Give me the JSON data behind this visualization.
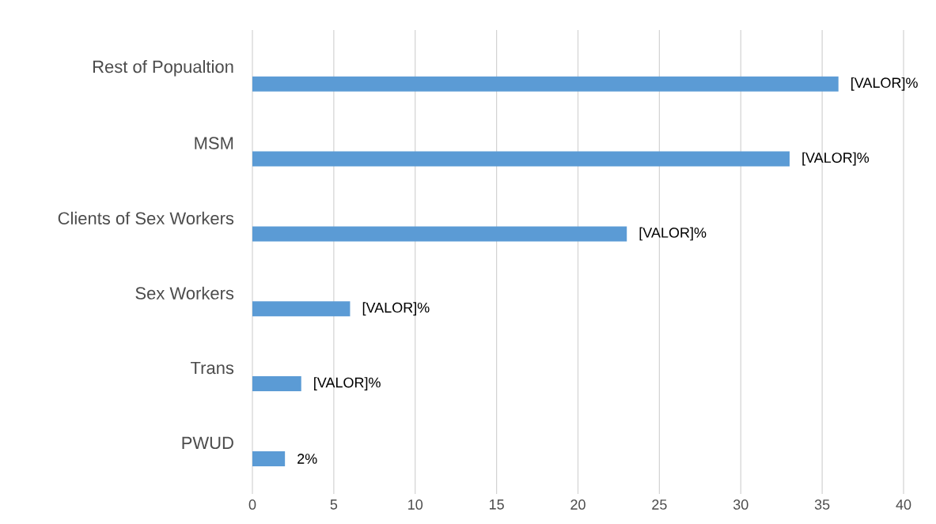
{
  "chart_data": {
    "type": "bar",
    "orientation": "horizontal",
    "categories": [
      "Rest of Popualtion",
      "MSM",
      "Clients of Sex Workers",
      "Sex Workers",
      "Trans",
      "PWUD"
    ],
    "values": [
      36,
      33,
      23,
      6,
      3,
      2
    ],
    "value_labels": [
      "[VALOR]%",
      "[VALOR]%",
      "[VALOR]%",
      "[VALOR]%",
      "[VALOR]%",
      "2%"
    ],
    "color": "#5b9bd5",
    "xlim": [
      0,
      40
    ],
    "xticks": [
      0,
      5,
      10,
      15,
      20,
      25,
      30,
      35,
      40
    ],
    "grid": "x"
  }
}
